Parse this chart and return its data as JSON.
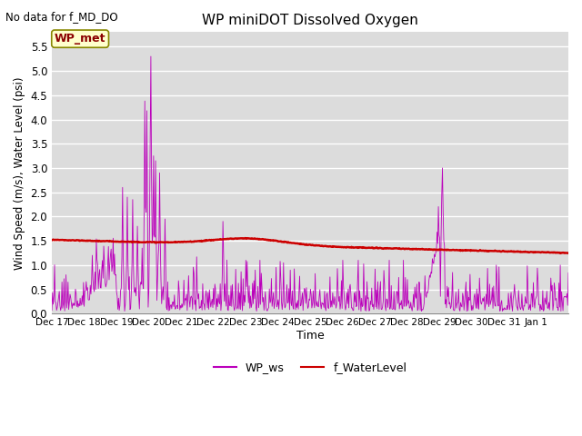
{
  "title": "WP miniDOT Dissolved Oxygen",
  "top_left_text": "No data for f_MD_DO",
  "ylabel": "Wind Speed (m/s), Water Level (psi)",
  "xlabel": "Time",
  "legend_label1": "WP_ws",
  "legend_label2": "f_WaterLevel",
  "annotation_box": "WP_met",
  "ws_color": "#BB00BB",
  "wl_color": "#CC0000",
  "bg_color": "#E8E8E8",
  "plot_bg_color": "#DCDCDC",
  "ylim": [
    0.0,
    5.8
  ],
  "ylim_display": [
    0.0,
    5.5
  ],
  "yticks": [
    0.0,
    0.5,
    1.0,
    1.5,
    2.0,
    2.5,
    3.0,
    3.5,
    4.0,
    4.5,
    5.0,
    5.5
  ],
  "xtick_labels": [
    "Dec 17",
    "Dec 18",
    "Dec 19",
    "Dec 20",
    "Dec 21",
    "Dec 22",
    "Dec 23",
    "Dec 24",
    "Dec 25",
    "Dec 26",
    "Dec 27",
    "Dec 28",
    "Dec 29",
    "Dec 30",
    "Dec 31",
    "Jan 1"
  ],
  "num_points_per_day": 48,
  "n_days": 16,
  "figsize": [
    6.4,
    4.8
  ],
  "dpi": 100
}
